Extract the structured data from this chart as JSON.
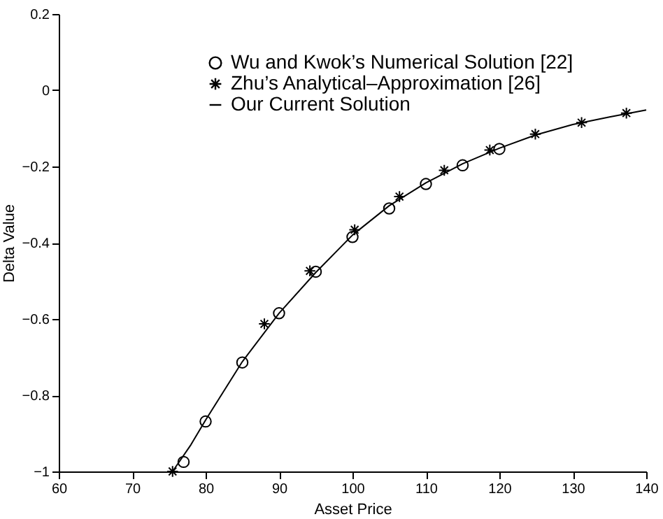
{
  "chart_data": {
    "type": "scatter",
    "xlabel": "Asset Price",
    "ylabel": "Delta Value",
    "xlim": [
      60,
      140
    ],
    "xticks": [
      60,
      70,
      80,
      90,
      100,
      110,
      120,
      130,
      140
    ],
    "ylim": [
      -1,
      0.2
    ],
    "yticks": [
      -1,
      -0.8,
      -0.6,
      -0.4,
      -0.2,
      0,
      0.2
    ],
    "grid": false,
    "legend": "top",
    "series": [
      {
        "name": "Wu and Kwok’s Numerical Solution [22]",
        "type": "scatter",
        "marker": "circle",
        "color": "#000000",
        "x": [
          77,
          80,
          85,
          90,
          95,
          100,
          105,
          110,
          115,
          120
        ],
        "values": [
          -0.975,
          -0.869,
          -0.714,
          -0.585,
          -0.476,
          -0.385,
          -0.31,
          -0.246,
          -0.197,
          -0.154
        ]
      },
      {
        "name": "Zhu’s Analytical–Approximation [26]",
        "type": "scatter",
        "marker": "cross",
        "color": "#000000",
        "x": [
          75.5,
          88,
          94.2,
          100.3,
          106.4,
          112.5,
          118.7,
          124.9,
          131.2,
          137.3
        ],
        "values": [
          -1,
          -0.613,
          -0.474,
          -0.366,
          -0.279,
          -0.21,
          -0.157,
          -0.115,
          -0.085,
          -0.06
        ]
      },
      {
        "name": "Our Current Solution",
        "type": "line",
        "marker": "none",
        "line_style": "solid",
        "color": "#000000",
        "x": [
          75.5,
          78,
          80,
          85,
          90,
          95,
          100,
          105,
          110,
          115,
          120,
          125,
          130,
          135,
          140
        ],
        "values": [
          -1,
          -0.93,
          -0.865,
          -0.712,
          -0.585,
          -0.478,
          -0.38,
          -0.303,
          -0.243,
          -0.193,
          -0.152,
          -0.117,
          -0.09,
          -0.07,
          -0.052
        ]
      }
    ]
  }
}
